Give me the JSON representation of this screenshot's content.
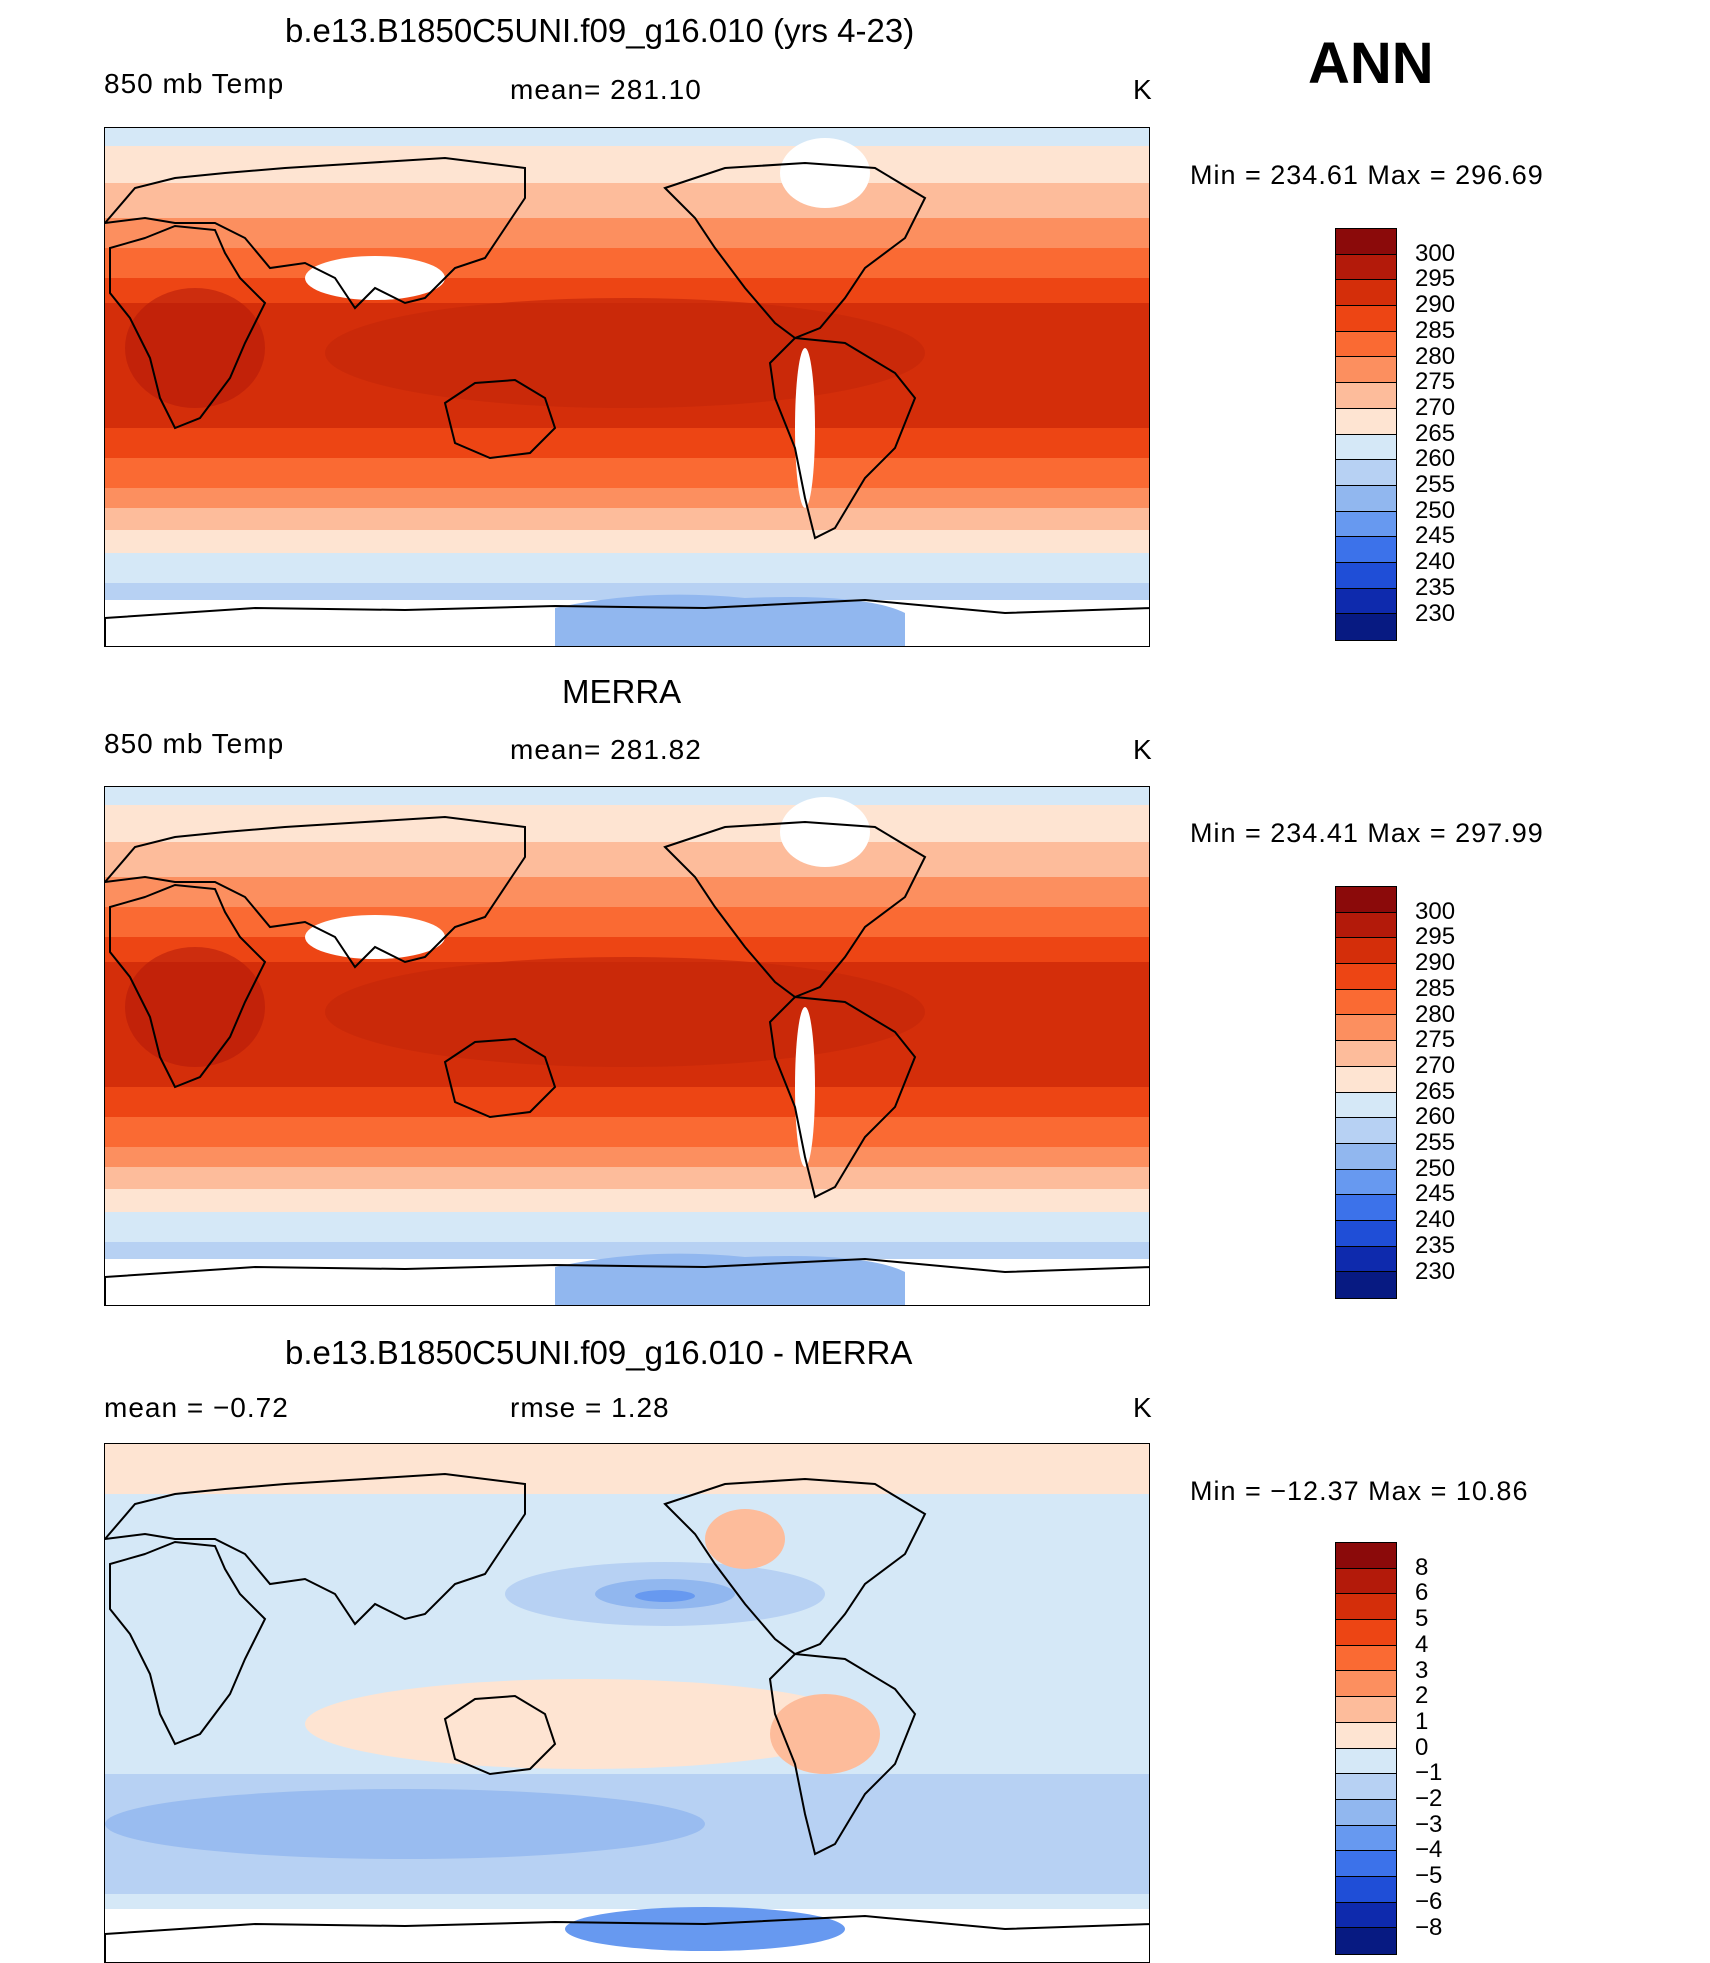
{
  "season": "ANN",
  "units": "K",
  "panels": [
    {
      "title": "b.e13.B1850C5UNI.f09_g16.010 (yrs 4-23)",
      "left_label": "850 mb Temp",
      "center_label": "mean= 281.10",
      "right_label": "K",
      "minmax": "Min = 234.61 Max = 296.69",
      "colorbar_ticks": [
        "300",
        "295",
        "290",
        "285",
        "280",
        "275",
        "270",
        "265",
        "260",
        "255",
        "250",
        "245",
        "240",
        "235",
        "230"
      ],
      "colorbar_colors": [
        "#8b0a0a",
        "#b31a0a",
        "#d42e0a",
        "#ed4514",
        "#fa6a33",
        "#fc8f5f",
        "#fdbc9b",
        "#fee4d2",
        "#d5e8f7",
        "#b7d1f3",
        "#91b7ef",
        "#6799f0",
        "#3c72ea",
        "#1f4ed7",
        "#0e2aad",
        "#071a82"
      ],
      "map_type": "absolute"
    },
    {
      "title": "MERRA",
      "left_label": "850 mb Temp",
      "center_label": "mean= 281.82",
      "right_label": "K",
      "minmax": "Min = 234.41 Max = 297.99",
      "colorbar_ticks": [
        "300",
        "295",
        "290",
        "285",
        "280",
        "275",
        "270",
        "265",
        "260",
        "255",
        "250",
        "245",
        "240",
        "235",
        "230"
      ],
      "colorbar_colors": [
        "#8b0a0a",
        "#b31a0a",
        "#d42e0a",
        "#ed4514",
        "#fa6a33",
        "#fc8f5f",
        "#fdbc9b",
        "#fee4d2",
        "#d5e8f7",
        "#b7d1f3",
        "#91b7ef",
        "#6799f0",
        "#3c72ea",
        "#1f4ed7",
        "#0e2aad",
        "#071a82"
      ],
      "map_type": "absolute"
    },
    {
      "title": "b.e13.B1850C5UNI.f09_g16.010 - MERRA",
      "left_label": "mean =   −0.72",
      "center_label": "rmse =    1.28",
      "right_label": "K",
      "minmax": "Min = −12.37 Max =   10.86",
      "colorbar_ticks": [
        "8",
        "6",
        "5",
        "4",
        "3",
        "2",
        "1",
        "0",
        "−1",
        "−2",
        "−3",
        "−4",
        "−5",
        "−6",
        "−8"
      ],
      "colorbar_colors": [
        "#8b0a0a",
        "#b31a0a",
        "#d42e0a",
        "#ed4514",
        "#fa6a33",
        "#fc8f5f",
        "#fdbc9b",
        "#fee4d2",
        "#d5e8f7",
        "#b7d1f3",
        "#91b7ef",
        "#6799f0",
        "#3c72ea",
        "#1f4ed7",
        "#0e2aad",
        "#071a82"
      ],
      "map_type": "difference"
    }
  ]
}
